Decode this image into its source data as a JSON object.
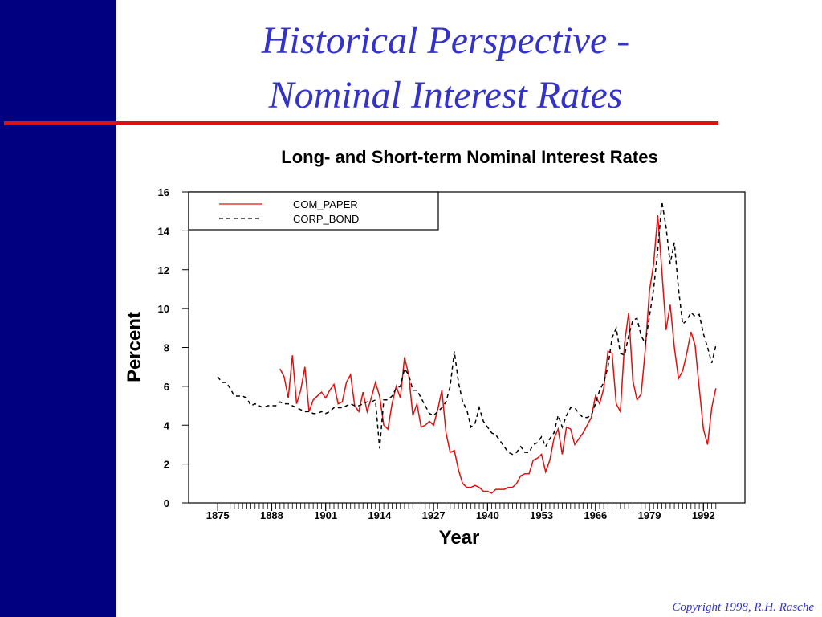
{
  "slide_title": [
    "Historical Perspective -",
    "Nominal Interest Rates"
  ],
  "copyright": "Copyright 1998, R.H. Rasche",
  "chart_data": {
    "type": "line",
    "title": "Long- and Short-term Nominal Interest Rates",
    "x_label": "Year",
    "y_label": "Percent",
    "x": [
      1875,
      1876,
      1877,
      1878,
      1879,
      1880,
      1881,
      1882,
      1883,
      1884,
      1885,
      1886,
      1887,
      1888,
      1889,
      1890,
      1891,
      1892,
      1893,
      1894,
      1895,
      1896,
      1897,
      1898,
      1899,
      1900,
      1901,
      1902,
      1903,
      1904,
      1905,
      1906,
      1907,
      1908,
      1909,
      1910,
      1911,
      1912,
      1913,
      1914,
      1915,
      1916,
      1917,
      1918,
      1919,
      1920,
      1921,
      1922,
      1923,
      1924,
      1925,
      1926,
      1927,
      1928,
      1929,
      1930,
      1931,
      1932,
      1933,
      1934,
      1935,
      1936,
      1937,
      1938,
      1939,
      1940,
      1941,
      1942,
      1943,
      1944,
      1945,
      1946,
      1947,
      1948,
      1949,
      1950,
      1951,
      1952,
      1953,
      1954,
      1955,
      1956,
      1957,
      1958,
      1959,
      1960,
      1961,
      1962,
      1963,
      1964,
      1965,
      1966,
      1967,
      1968,
      1969,
      1970,
      1971,
      1972,
      1973,
      1974,
      1975,
      1976,
      1977,
      1978,
      1979,
      1980,
      1981,
      1982,
      1983,
      1984,
      1985,
      1986,
      1987,
      1988,
      1989,
      1990,
      1991,
      1992,
      1993,
      1994,
      1995
    ],
    "series": [
      {
        "name": "COM_PAPER",
        "color": "#e01010",
        "style": "solid",
        "values": [
          null,
          null,
          null,
          null,
          null,
          null,
          null,
          null,
          null,
          null,
          null,
          null,
          null,
          null,
          null,
          6.9,
          6.5,
          5.4,
          7.6,
          5.1,
          5.8,
          7.0,
          4.7,
          5.3,
          5.5,
          5.7,
          5.4,
          5.8,
          6.1,
          5.1,
          5.2,
          6.2,
          6.6,
          5.0,
          4.7,
          5.7,
          4.7,
          5.4,
          6.2,
          5.5,
          4.0,
          3.8,
          5.1,
          6.0,
          5.4,
          7.5,
          6.6,
          4.5,
          5.1,
          3.9,
          4.0,
          4.2,
          4.0,
          4.8,
          5.8,
          3.6,
          2.6,
          2.7,
          1.7,
          1.0,
          0.8,
          0.8,
          0.9,
          0.8,
          0.6,
          0.6,
          0.5,
          0.7,
          0.7,
          0.7,
          0.8,
          0.8,
          1.0,
          1.4,
          1.5,
          1.5,
          2.2,
          2.3,
          2.5,
          1.6,
          2.2,
          3.3,
          3.8,
          2.5,
          3.9,
          3.8,
          3.0,
          3.3,
          3.6,
          4.0,
          4.4,
          5.5,
          5.1,
          5.9,
          7.8,
          7.7,
          5.1,
          4.7,
          8.2,
          9.8,
          6.3,
          5.3,
          5.6,
          7.9,
          10.9,
          12.3,
          14.8,
          11.9,
          8.9,
          10.2,
          8.0,
          6.4,
          6.8,
          7.7,
          8.8,
          8.1,
          5.9,
          3.8,
          3.0,
          4.9,
          5.9
        ]
      },
      {
        "name": "CORP_BOND",
        "color": "#000000",
        "style": "dashed",
        "values": [
          6.5,
          6.2,
          6.2,
          5.9,
          5.5,
          5.5,
          5.5,
          5.4,
          5.0,
          5.1,
          5.0,
          4.9,
          5.0,
          5.0,
          5.0,
          5.2,
          5.1,
          5.1,
          5.0,
          4.9,
          4.8,
          4.7,
          4.7,
          4.6,
          4.6,
          4.7,
          4.6,
          4.7,
          4.9,
          4.9,
          4.9,
          5.0,
          5.1,
          5.0,
          5.0,
          5.1,
          5.2,
          5.2,
          5.3,
          2.8,
          5.3,
          5.3,
          5.5,
          5.9,
          6.0,
          6.9,
          6.6,
          5.8,
          5.8,
          5.4,
          5.0,
          4.6,
          4.5,
          4.7,
          4.9,
          5.2,
          6.0,
          7.8,
          6.2,
          5.2,
          4.8,
          3.9,
          4.1,
          4.9,
          4.2,
          3.9,
          3.6,
          3.5,
          3.2,
          2.9,
          2.6,
          2.5,
          2.6,
          2.9,
          2.6,
          2.6,
          3.0,
          3.1,
          3.4,
          2.9,
          3.3,
          3.6,
          4.5,
          3.9,
          4.5,
          4.9,
          4.9,
          4.6,
          4.4,
          4.4,
          4.5,
          5.1,
          5.8,
          6.2,
          7.0,
          8.5,
          9.0,
          7.7,
          7.6,
          8.6,
          9.4,
          9.5,
          8.6,
          8.2,
          9.6,
          11.0,
          13.0,
          15.5,
          14.2,
          12.3,
          13.4,
          11.0,
          9.2,
          9.4,
          9.8,
          9.6,
          9.7,
          8.7,
          8.0,
          7.2,
          8.1
        ]
      }
    ],
    "xlim": [
      1868,
      2002
    ],
    "xticks": [
      1875,
      1888,
      1901,
      1914,
      1927,
      1940,
      1953,
      1966,
      1979,
      1992
    ],
    "ylim": [
      0,
      16
    ],
    "yticks": [
      0,
      2,
      4,
      6,
      8,
      10,
      12,
      14,
      16
    ],
    "grid": false,
    "legend": "upper left"
  }
}
